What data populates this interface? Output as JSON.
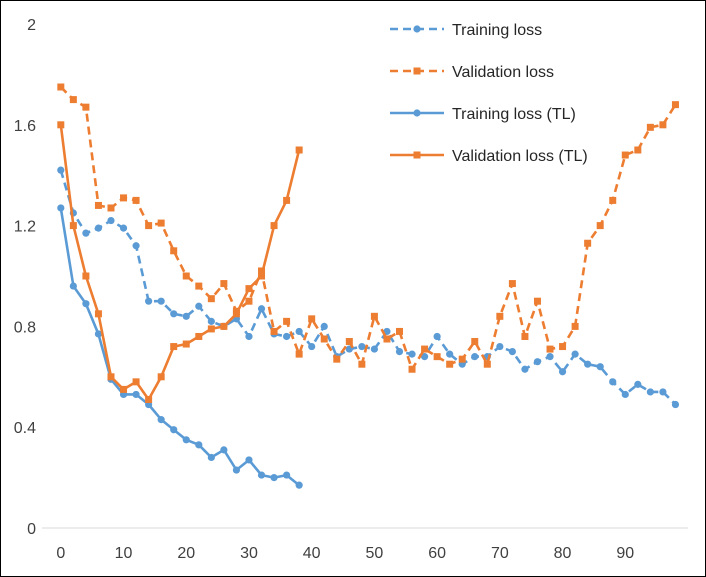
{
  "chart_data": {
    "type": "line",
    "title": "",
    "xlabel": "",
    "ylabel": "",
    "xlim": [
      -3,
      100
    ],
    "ylim": [
      0,
      2
    ],
    "xticks": [
      0,
      10,
      20,
      30,
      40,
      50,
      60,
      70,
      80,
      90
    ],
    "yticks": [
      0,
      0.4,
      0.8,
      1.2,
      1.6,
      2
    ],
    "ytick_labels": [
      "0",
      "0.4",
      "0.8",
      "1.2",
      "1.6",
      "2"
    ],
    "grid": false,
    "legend_position": "top-right",
    "colors": {
      "training": "#5B9BD5",
      "validation": "#ED7D31"
    },
    "series": [
      {
        "name": "Training loss",
        "color": "#5B9BD5",
        "dashed": true,
        "marker": "circle",
        "x": [
          0,
          2,
          4,
          6,
          8,
          10,
          12,
          14,
          16,
          18,
          20,
          22,
          24,
          26,
          28,
          30,
          32,
          34,
          36,
          38,
          40,
          42,
          44,
          46,
          48,
          50,
          52,
          54,
          56,
          58,
          60,
          62,
          64,
          66,
          68,
          70,
          72,
          74,
          76,
          78,
          80,
          82,
          84,
          86,
          88,
          90,
          92,
          94,
          96,
          98
        ],
        "y": [
          1.42,
          1.25,
          1.17,
          1.19,
          1.22,
          1.19,
          1.12,
          0.9,
          0.9,
          0.85,
          0.84,
          0.88,
          0.82,
          0.8,
          0.83,
          0.76,
          0.87,
          0.77,
          0.76,
          0.78,
          0.72,
          0.8,
          0.68,
          0.71,
          0.72,
          0.71,
          0.78,
          0.7,
          0.69,
          0.68,
          0.76,
          0.69,
          0.65,
          0.68,
          0.68,
          0.72,
          0.7,
          0.63,
          0.66,
          0.68,
          0.62,
          0.69,
          0.65,
          0.64,
          0.58,
          0.53,
          0.57,
          0.54,
          0.54,
          0.49
        ]
      },
      {
        "name": "Validation loss",
        "color": "#ED7D31",
        "dashed": true,
        "marker": "square",
        "x": [
          0,
          2,
          4,
          6,
          8,
          10,
          12,
          14,
          16,
          18,
          20,
          22,
          24,
          26,
          28,
          30,
          32,
          34,
          36,
          38,
          40,
          42,
          44,
          46,
          48,
          50,
          52,
          54,
          56,
          58,
          60,
          62,
          64,
          66,
          68,
          70,
          72,
          74,
          76,
          78,
          80,
          82,
          84,
          86,
          88,
          90,
          92,
          94,
          96,
          98
        ],
        "y": [
          1.75,
          1.7,
          1.67,
          1.28,
          1.27,
          1.31,
          1.3,
          1.2,
          1.21,
          1.1,
          1.0,
          0.96,
          0.91,
          0.97,
          0.86,
          0.9,
          1.02,
          0.78,
          0.82,
          0.69,
          0.83,
          0.75,
          0.67,
          0.74,
          0.65,
          0.84,
          0.75,
          0.78,
          0.63,
          0.71,
          0.68,
          0.65,
          0.67,
          0.74,
          0.65,
          0.84,
          0.97,
          0.76,
          0.9,
          0.71,
          0.72,
          0.8,
          1.13,
          1.2,
          1.3,
          1.48,
          1.5,
          1.59,
          1.6,
          1.68
        ]
      },
      {
        "name": "Training loss (TL)",
        "color": "#5B9BD5",
        "dashed": false,
        "marker": "circle",
        "x": [
          0,
          2,
          4,
          6,
          8,
          10,
          12,
          14,
          16,
          18,
          20,
          22,
          24,
          26,
          28,
          30,
          32,
          34,
          36,
          38
        ],
        "y": [
          1.27,
          0.96,
          0.89,
          0.77,
          0.59,
          0.53,
          0.53,
          0.49,
          0.43,
          0.39,
          0.35,
          0.33,
          0.28,
          0.31,
          0.23,
          0.27,
          0.21,
          0.2,
          0.21,
          0.17
        ]
      },
      {
        "name": "Validation loss (TL)",
        "color": "#ED7D31",
        "dashed": false,
        "marker": "square",
        "x": [
          0,
          2,
          4,
          6,
          8,
          10,
          12,
          14,
          16,
          18,
          20,
          22,
          24,
          26,
          28,
          30,
          32,
          34,
          36,
          38
        ],
        "y": [
          1.6,
          1.2,
          1.0,
          0.85,
          0.6,
          0.55,
          0.58,
          0.51,
          0.6,
          0.72,
          0.73,
          0.76,
          0.79,
          0.8,
          0.85,
          0.95,
          1.0,
          1.2,
          1.3,
          1.5
        ]
      }
    ]
  }
}
